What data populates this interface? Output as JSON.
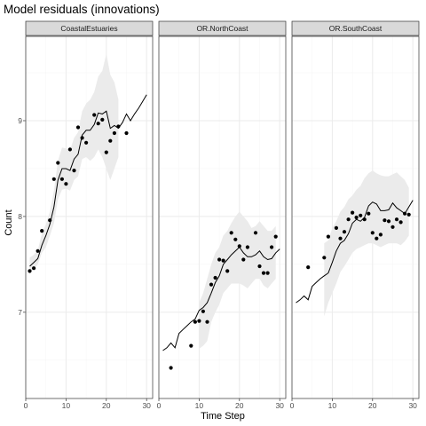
{
  "chart_data": {
    "type": "line",
    "title": "Model residuals (innovations)",
    "xlabel": "Time Step",
    "ylabel": "Count",
    "xlim": [
      0,
      31.5
    ],
    "ylim": [
      6.1,
      9.88
    ],
    "x_ticks": [
      0,
      10,
      20,
      30
    ],
    "y_ticks": [
      7,
      8,
      9
    ],
    "grid": true,
    "legend": "none",
    "colors": {
      "ribbon": "#ebebeb",
      "line": "#000000",
      "points": "#000000",
      "strip_fill": "#d9d9d9",
      "panel_border": "#333333",
      "grid_major": "#ebebeb",
      "grid_minor": "#f5f5f5"
    },
    "panels": [
      {
        "label": "CoastalEstuaries",
        "points": [
          {
            "x": 1,
            "y": 7.43
          },
          {
            "x": 2,
            "y": 7.46
          },
          {
            "x": 3,
            "y": 7.64
          },
          {
            "x": 4,
            "y": 7.85
          },
          {
            "x": 6,
            "y": 7.96
          },
          {
            "x": 7,
            "y": 8.39
          },
          {
            "x": 8,
            "y": 8.56
          },
          {
            "x": 9,
            "y": 8.39
          },
          {
            "x": 10,
            "y": 8.34
          },
          {
            "x": 11,
            "y": 8.7
          },
          {
            "x": 12,
            "y": 8.48
          },
          {
            "x": 13,
            "y": 8.93
          },
          {
            "x": 14,
            "y": 8.82
          },
          {
            "x": 15,
            "y": 8.77
          },
          {
            "x": 17,
            "y": 9.06
          },
          {
            "x": 18,
            "y": 8.97
          },
          {
            "x": 19,
            "y": 9.01
          },
          {
            "x": 20,
            "y": 8.67
          },
          {
            "x": 21,
            "y": 8.79
          },
          {
            "x": 22,
            "y": 8.87
          },
          {
            "x": 23,
            "y": 8.94
          },
          {
            "x": 25,
            "y": 8.87
          }
        ],
        "line": [
          {
            "x": 1,
            "y": 7.48
          },
          {
            "x": 2,
            "y": 7.52
          },
          {
            "x": 3,
            "y": 7.56
          },
          {
            "x": 4,
            "y": 7.7
          },
          {
            "x": 5,
            "y": 7.8
          },
          {
            "x": 6,
            "y": 7.92
          },
          {
            "x": 7,
            "y": 8.1
          },
          {
            "x": 8,
            "y": 8.38
          },
          {
            "x": 9,
            "y": 8.5
          },
          {
            "x": 10,
            "y": 8.5
          },
          {
            "x": 11,
            "y": 8.48
          },
          {
            "x": 12,
            "y": 8.6
          },
          {
            "x": 13,
            "y": 8.65
          },
          {
            "x": 14,
            "y": 8.85
          },
          {
            "x": 15,
            "y": 8.9
          },
          {
            "x": 16,
            "y": 8.9
          },
          {
            "x": 17,
            "y": 8.96
          },
          {
            "x": 18,
            "y": 9.08
          },
          {
            "x": 19,
            "y": 9.07
          },
          {
            "x": 20,
            "y": 9.1
          },
          {
            "x": 21,
            "y": 8.92
          },
          {
            "x": 22,
            "y": 8.95
          },
          {
            "x": 23,
            "y": 8.92
          },
          {
            "x": 24,
            "y": 8.98
          },
          {
            "x": 25,
            "y": 9.07
          },
          {
            "x": 26,
            "y": 9.0
          },
          {
            "x": 27,
            "y": 9.07
          },
          {
            "x": 28,
            "y": 9.13
          },
          {
            "x": 29,
            "y": 9.2
          },
          {
            "x": 30,
            "y": 9.27
          }
        ],
        "ribbon": [
          {
            "x": 1,
            "lo": 7.4,
            "hi": 7.57
          },
          {
            "x": 2,
            "lo": 7.45,
            "hi": 7.6
          },
          {
            "x": 3,
            "lo": 7.5,
            "hi": 7.65
          },
          {
            "x": 4,
            "lo": 7.62,
            "hi": 7.82
          },
          {
            "x": 5,
            "lo": 7.68,
            "hi": 7.92
          },
          {
            "x": 6,
            "lo": 7.8,
            "hi": 8.05
          },
          {
            "x": 7,
            "lo": 7.93,
            "hi": 8.27
          },
          {
            "x": 8,
            "lo": 8.18,
            "hi": 8.58
          },
          {
            "x": 9,
            "lo": 8.28,
            "hi": 8.72
          },
          {
            "x": 10,
            "lo": 8.29,
            "hi": 8.71
          },
          {
            "x": 11,
            "lo": 8.27,
            "hi": 8.69
          },
          {
            "x": 12,
            "lo": 8.38,
            "hi": 8.82
          },
          {
            "x": 13,
            "lo": 8.42,
            "hi": 8.88
          },
          {
            "x": 14,
            "lo": 8.6,
            "hi": 9.1
          },
          {
            "x": 15,
            "lo": 8.62,
            "hi": 9.18
          },
          {
            "x": 16,
            "lo": 8.58,
            "hi": 9.22
          },
          {
            "x": 17,
            "lo": 8.62,
            "hi": 9.3
          },
          {
            "x": 18,
            "lo": 8.7,
            "hi": 9.46
          },
          {
            "x": 19,
            "lo": 8.62,
            "hi": 9.52
          },
          {
            "x": 20,
            "lo": 8.5,
            "hi": 9.7
          },
          {
            "x": 21,
            "lo": 8.38,
            "hi": 9.48
          },
          {
            "x": 22,
            "lo": 8.5,
            "hi": 9.4
          },
          {
            "x": 23,
            "lo": 8.62,
            "hi": 9.22
          }
        ]
      },
      {
        "label": "OR.NorthCoast",
        "points": [
          {
            "x": 3,
            "y": 6.42
          },
          {
            "x": 8,
            "y": 6.65
          },
          {
            "x": 9,
            "y": 6.9
          },
          {
            "x": 10,
            "y": 6.91
          },
          {
            "x": 11,
            "y": 7.01
          },
          {
            "x": 12,
            "y": 6.9
          },
          {
            "x": 13,
            "y": 7.29
          },
          {
            "x": 14,
            "y": 7.36
          },
          {
            "x": 15,
            "y": 7.55
          },
          {
            "x": 16,
            "y": 7.54
          },
          {
            "x": 17,
            "y": 7.43
          },
          {
            "x": 18,
            "y": 7.83
          },
          {
            "x": 19,
            "y": 7.76
          },
          {
            "x": 20,
            "y": 7.69
          },
          {
            "x": 21,
            "y": 7.55
          },
          {
            "x": 22,
            "y": 7.68
          },
          {
            "x": 24,
            "y": 7.83
          },
          {
            "x": 25,
            "y": 7.48
          },
          {
            "x": 26,
            "y": 7.41
          },
          {
            "x": 27,
            "y": 7.41
          },
          {
            "x": 28,
            "y": 7.68
          },
          {
            "x": 29,
            "y": 7.79
          }
        ],
        "line": [
          {
            "x": 1,
            "y": 6.6
          },
          {
            "x": 2,
            "y": 6.63
          },
          {
            "x": 3,
            "y": 6.68
          },
          {
            "x": 4,
            "y": 6.63
          },
          {
            "x": 5,
            "y": 6.78
          },
          {
            "x": 6,
            "y": 6.82
          },
          {
            "x": 7,
            "y": 6.86
          },
          {
            "x": 8,
            "y": 6.9
          },
          {
            "x": 9,
            "y": 6.93
          },
          {
            "x": 10,
            "y": 7.02
          },
          {
            "x": 11,
            "y": 7.05
          },
          {
            "x": 12,
            "y": 7.1
          },
          {
            "x": 13,
            "y": 7.2
          },
          {
            "x": 14,
            "y": 7.31
          },
          {
            "x": 15,
            "y": 7.38
          },
          {
            "x": 16,
            "y": 7.5
          },
          {
            "x": 17,
            "y": 7.55
          },
          {
            "x": 18,
            "y": 7.6
          },
          {
            "x": 19,
            "y": 7.64
          },
          {
            "x": 20,
            "y": 7.68
          },
          {
            "x": 21,
            "y": 7.62
          },
          {
            "x": 22,
            "y": 7.58
          },
          {
            "x": 23,
            "y": 7.58
          },
          {
            "x": 24,
            "y": 7.6
          },
          {
            "x": 25,
            "y": 7.64
          },
          {
            "x": 26,
            "y": 7.58
          },
          {
            "x": 27,
            "y": 7.55
          },
          {
            "x": 28,
            "y": 7.56
          },
          {
            "x": 29,
            "y": 7.62
          },
          {
            "x": 30,
            "y": 7.66
          }
        ],
        "ribbon": [
          {
            "x": 10,
            "lo": 6.62,
            "hi": 7.1
          },
          {
            "x": 11,
            "lo": 6.65,
            "hi": 7.2
          },
          {
            "x": 12,
            "lo": 6.7,
            "hi": 7.35
          },
          {
            "x": 13,
            "lo": 6.9,
            "hi": 7.5
          },
          {
            "x": 14,
            "lo": 7.0,
            "hi": 7.62
          },
          {
            "x": 15,
            "lo": 7.08,
            "hi": 7.68
          },
          {
            "x": 16,
            "lo": 7.2,
            "hi": 7.8
          },
          {
            "x": 17,
            "lo": 7.25,
            "hi": 7.85
          },
          {
            "x": 18,
            "lo": 7.3,
            "hi": 7.93
          },
          {
            "x": 19,
            "lo": 7.3,
            "hi": 8.0
          },
          {
            "x": 20,
            "lo": 7.3,
            "hi": 8.05
          },
          {
            "x": 21,
            "lo": 7.28,
            "hi": 8.0
          },
          {
            "x": 22,
            "lo": 7.25,
            "hi": 7.95
          },
          {
            "x": 23,
            "lo": 7.3,
            "hi": 7.88
          },
          {
            "x": 24,
            "lo": 7.35,
            "hi": 7.9
          },
          {
            "x": 25,
            "lo": 7.35,
            "hi": 7.95
          },
          {
            "x": 26,
            "lo": 7.28,
            "hi": 7.9
          },
          {
            "x": 27,
            "lo": 7.25,
            "hi": 7.85
          },
          {
            "x": 28,
            "lo": 7.3,
            "hi": 7.85
          },
          {
            "x": 29,
            "lo": 7.35,
            "hi": 7.9
          }
        ]
      },
      {
        "label": "OR.SouthCoast",
        "points": [
          {
            "x": 4,
            "y": 7.47
          },
          {
            "x": 8,
            "y": 7.57
          },
          {
            "x": 9,
            "y": 7.79
          },
          {
            "x": 11,
            "y": 7.88
          },
          {
            "x": 12,
            "y": 7.77
          },
          {
            "x": 13,
            "y": 7.84
          },
          {
            "x": 14,
            "y": 7.97
          },
          {
            "x": 15,
            "y": 8.04
          },
          {
            "x": 16,
            "y": 7.99
          },
          {
            "x": 17,
            "y": 8.01
          },
          {
            "x": 18,
            "y": 7.97
          },
          {
            "x": 19,
            "y": 8.03
          },
          {
            "x": 20,
            "y": 7.83
          },
          {
            "x": 21,
            "y": 7.77
          },
          {
            "x": 22,
            "y": 7.81
          },
          {
            "x": 23,
            "y": 7.96
          },
          {
            "x": 24,
            "y": 7.95
          },
          {
            "x": 25,
            "y": 7.89
          },
          {
            "x": 26,
            "y": 7.97
          },
          {
            "x": 27,
            "y": 7.94
          },
          {
            "x": 28,
            "y": 8.03
          },
          {
            "x": 29,
            "y": 8.02
          }
        ],
        "line": [
          {
            "x": 1,
            "y": 7.1
          },
          {
            "x": 2,
            "y": 7.13
          },
          {
            "x": 3,
            "y": 7.17
          },
          {
            "x": 4,
            "y": 7.13
          },
          {
            "x": 5,
            "y": 7.27
          },
          {
            "x": 6,
            "y": 7.31
          },
          {
            "x": 7,
            "y": 7.35
          },
          {
            "x": 8,
            "y": 7.38
          },
          {
            "x": 9,
            "y": 7.41
          },
          {
            "x": 10,
            "y": 7.52
          },
          {
            "x": 11,
            "y": 7.64
          },
          {
            "x": 12,
            "y": 7.72
          },
          {
            "x": 13,
            "y": 7.75
          },
          {
            "x": 14,
            "y": 7.82
          },
          {
            "x": 15,
            "y": 7.93
          },
          {
            "x": 16,
            "y": 7.97
          },
          {
            "x": 17,
            "y": 7.95
          },
          {
            "x": 18,
            "y": 7.99
          },
          {
            "x": 19,
            "y": 8.11
          },
          {
            "x": 20,
            "y": 8.15
          },
          {
            "x": 21,
            "y": 8.13
          },
          {
            "x": 22,
            "y": 8.06
          },
          {
            "x": 23,
            "y": 8.06
          },
          {
            "x": 24,
            "y": 8.07
          },
          {
            "x": 25,
            "y": 8.14
          },
          {
            "x": 26,
            "y": 8.09
          },
          {
            "x": 27,
            "y": 8.06
          },
          {
            "x": 28,
            "y": 8.03
          },
          {
            "x": 29,
            "y": 8.1
          },
          {
            "x": 30,
            "y": 8.17
          }
        ],
        "ribbon": [
          {
            "x": 8,
            "lo": 6.96,
            "hi": 7.72
          },
          {
            "x": 9,
            "lo": 7.1,
            "hi": 7.75
          },
          {
            "x": 10,
            "lo": 7.2,
            "hi": 7.88
          },
          {
            "x": 11,
            "lo": 7.3,
            "hi": 7.95
          },
          {
            "x": 12,
            "lo": 7.42,
            "hi": 8.05
          },
          {
            "x": 13,
            "lo": 7.48,
            "hi": 8.1
          },
          {
            "x": 14,
            "lo": 7.55,
            "hi": 8.18
          },
          {
            "x": 15,
            "lo": 7.62,
            "hi": 8.22
          },
          {
            "x": 16,
            "lo": 7.66,
            "hi": 8.28
          },
          {
            "x": 17,
            "lo": 7.68,
            "hi": 8.32
          },
          {
            "x": 18,
            "lo": 7.7,
            "hi": 8.4
          },
          {
            "x": 19,
            "lo": 7.72,
            "hi": 8.45
          },
          {
            "x": 20,
            "lo": 7.72,
            "hi": 8.48
          },
          {
            "x": 21,
            "lo": 7.7,
            "hi": 8.45
          },
          {
            "x": 22,
            "lo": 7.68,
            "hi": 8.43
          },
          {
            "x": 23,
            "lo": 7.7,
            "hi": 8.42
          },
          {
            "x": 24,
            "lo": 7.72,
            "hi": 8.42
          },
          {
            "x": 25,
            "lo": 7.72,
            "hi": 8.44
          },
          {
            "x": 26,
            "lo": 7.72,
            "hi": 8.46
          },
          {
            "x": 27,
            "lo": 7.7,
            "hi": 8.42
          },
          {
            "x": 28,
            "lo": 7.74,
            "hi": 8.38
          },
          {
            "x": 29,
            "lo": 7.8,
            "hi": 8.3
          }
        ]
      }
    ]
  }
}
